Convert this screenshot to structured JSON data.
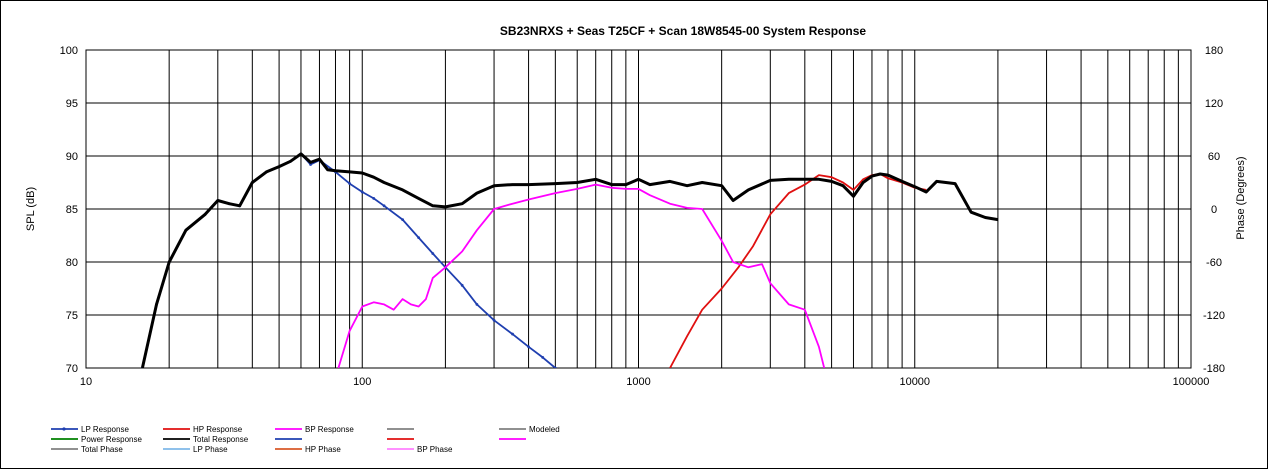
{
  "chart_data": {
    "type": "line",
    "title": "SB23NRXS + Seas T25CF + Scan 18W8545-00   System Response",
    "xlabel": "",
    "ylabel": "SPL (dB)",
    "y2label": "Phase (Degrees)",
    "xscale": "log",
    "xlim": [
      10,
      100000
    ],
    "ylim": [
      70,
      100
    ],
    "y2lim": [
      -180,
      180
    ],
    "x_ticks": [
      "10",
      "100",
      "1000",
      "10000",
      "100000"
    ],
    "y_ticks": [
      "70",
      "75",
      "80",
      "85",
      "90",
      "95",
      "100"
    ],
    "y2_ticks": [
      "-180",
      "-120",
      "-60",
      "0",
      "60",
      "120",
      "180"
    ],
    "grid": true,
    "legend_position": "bottom",
    "legend": [
      {
        "label": "LP Response",
        "color": "#1f3fb0",
        "marker": true
      },
      {
        "label": "HP Response",
        "color": "#e01010"
      },
      {
        "label": "BP Response",
        "color": "#ff00ff"
      },
      {
        "label": "",
        "color": "#808080"
      },
      {
        "label": "Modeled",
        "color": "#808080"
      },
      {
        "label": "Power Response",
        "color": "#008000"
      },
      {
        "label": "Total Response",
        "color": "#000000"
      },
      {
        "label": "",
        "color": "#1f3fb0"
      },
      {
        "label": "",
        "color": "#e01010"
      },
      {
        "label": "",
        "color": "#ff00ff"
      },
      {
        "label": "Total Phase",
        "color": "#808080"
      },
      {
        "label": "LP Phase",
        "color": "#7fb8e8"
      },
      {
        "label": "HP Phase",
        "color": "#d85a2a"
      },
      {
        "label": "BP Phase",
        "color": "#ff80ff"
      }
    ],
    "series": [
      {
        "name": "LP Response",
        "color": "#1f3fb0",
        "x": [
          16,
          18,
          20,
          23,
          27,
          30,
          33,
          36,
          40,
          45,
          50,
          55,
          60,
          65,
          70,
          80,
          90,
          100,
          110,
          120,
          140,
          160,
          180,
          200,
          230,
          260,
          300,
          350,
          400,
          450,
          500,
          520
        ],
        "y": [
          70,
          76,
          80,
          83,
          84.5,
          85.8,
          85.5,
          85.3,
          87.5,
          88.5,
          89,
          89.5,
          90.2,
          89.2,
          89.6,
          88.5,
          87.4,
          86.6,
          86,
          85.3,
          84,
          82.3,
          80.8,
          79.5,
          77.8,
          76,
          74.5,
          73.2,
          72,
          71,
          70,
          69.5
        ]
      },
      {
        "name": "HP Response",
        "color": "#e01010",
        "x": [
          1300,
          1500,
          1700,
          2000,
          2300,
          2600,
          3000,
          3500,
          4000,
          4500,
          5000,
          5500,
          6000,
          6500,
          7000,
          7500,
          8000,
          9000,
          10000,
          11000
        ],
        "y": [
          70,
          73,
          75.5,
          77.5,
          79.5,
          81.5,
          84.5,
          86.5,
          87.3,
          88.2,
          88,
          87.5,
          86.8,
          87.8,
          88.2,
          88.3,
          87.9,
          87.5,
          87,
          86.8
        ]
      },
      {
        "name": "BP Response",
        "color": "#ff00ff",
        "x": [
          82,
          90,
          100,
          110,
          120,
          130,
          140,
          150,
          160,
          170,
          180,
          200,
          230,
          260,
          300,
          350,
          400,
          500,
          600,
          700,
          800,
          900,
          1000,
          1100,
          1300,
          1500,
          1700,
          2000,
          2200,
          2500,
          2800,
          3000,
          3500,
          4000,
          4500,
          4700
        ],
        "y": [
          70,
          73.5,
          75.8,
          76.2,
          76,
          75.5,
          76.5,
          76,
          75.8,
          76.5,
          78.5,
          79.5,
          81,
          83,
          85,
          85.5,
          85.9,
          86.5,
          86.9,
          87.3,
          87,
          86.9,
          86.9,
          86.3,
          85.5,
          85.1,
          85,
          82,
          80,
          79.5,
          79.8,
          78,
          76,
          75.5,
          72,
          70
        ]
      },
      {
        "name": "Total Response",
        "color": "#000000",
        "x": [
          16,
          18,
          20,
          23,
          27,
          30,
          33,
          36,
          40,
          45,
          50,
          55,
          60,
          65,
          70,
          75,
          80,
          90,
          100,
          110,
          120,
          140,
          160,
          180,
          200,
          230,
          260,
          300,
          350,
          400,
          500,
          600,
          700,
          800,
          900,
          1000,
          1100,
          1300,
          1500,
          1700,
          2000,
          2200,
          2500,
          3000,
          3500,
          4000,
          4500,
          5000,
          5500,
          6000,
          6500,
          7000,
          7500,
          8000,
          9000,
          10000,
          11000,
          12000,
          14000,
          16000,
          18000,
          20000
        ],
        "y": [
          70,
          76,
          80,
          83,
          84.5,
          85.8,
          85.5,
          85.3,
          87.5,
          88.5,
          89,
          89.5,
          90.2,
          89.4,
          89.7,
          88.7,
          88.6,
          88.5,
          88.4,
          88,
          87.5,
          86.8,
          86,
          85.3,
          85.2,
          85.5,
          86.5,
          87.2,
          87.3,
          87.3,
          87.4,
          87.5,
          87.8,
          87.3,
          87.3,
          87.8,
          87.3,
          87.6,
          87.2,
          87.5,
          87.2,
          85.8,
          86.8,
          87.7,
          87.8,
          87.8,
          87.8,
          87.6,
          87.2,
          86.2,
          87.5,
          88.1,
          88.3,
          88.2,
          87.6,
          87.1,
          86.6,
          87.6,
          87.4,
          84.7,
          84.2,
          84
        ]
      }
    ]
  }
}
